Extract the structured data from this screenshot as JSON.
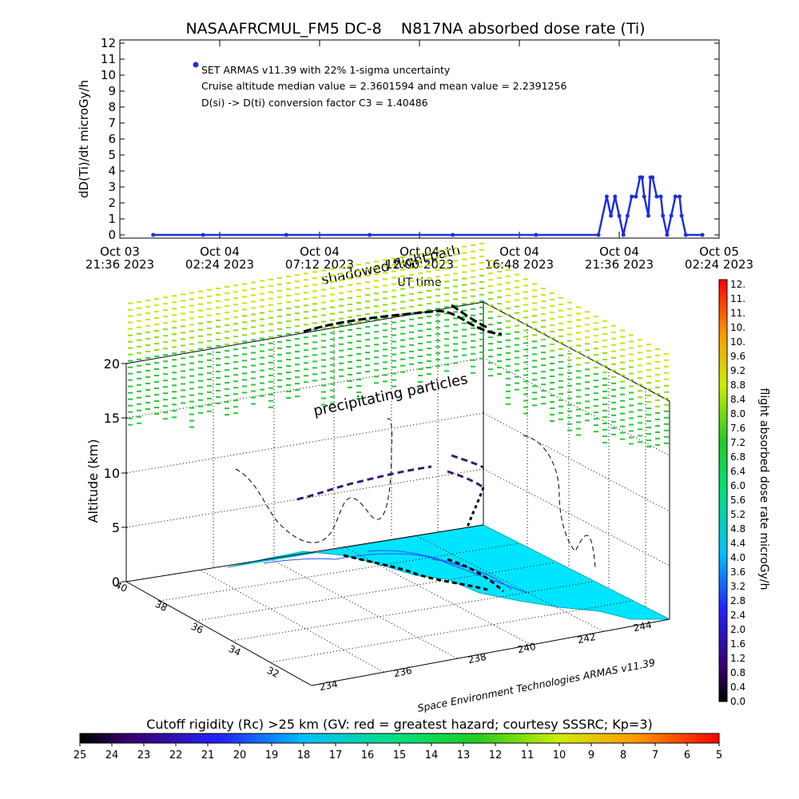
{
  "colors": {
    "series": "#1f2fe0",
    "ground": "#00e5ff",
    "lowdose": "#3a1a70",
    "highdose": "#c8e800",
    "mid": "#22cc33",
    "track": "#000000"
  },
  "top_chart": {
    "title": "NASAAFRCMUL_FM5 DC-8    N817NA absorbed dose rate (Ti)",
    "ylabel": "dD(Ti)/dt microGy/h",
    "xlabel": "UT time",
    "yticks": [
      "0",
      "1",
      "2",
      "3",
      "4",
      "5",
      "6",
      "7",
      "8",
      "9",
      "10",
      "11",
      "12"
    ],
    "xticks": [
      {
        "day": "Oct 03",
        "time": "21:36 2023"
      },
      {
        "day": "Oct 04",
        "time": "02:24 2023"
      },
      {
        "day": "Oct 04",
        "time": "07:12 2023"
      },
      {
        "day": "Oct 04",
        "time": "12:00 2023"
      },
      {
        "day": "Oct 04",
        "time": "16:48 2023"
      },
      {
        "day": "Oct 04",
        "time": "21:36 2023"
      },
      {
        "day": "Oct 05",
        "time": "02:24 2023"
      }
    ],
    "legend": [
      "SET ARMAS v11.39 with 22% 1-sigma uncertainty",
      "Cruise altitude median value = 2.3601594 and mean value = 2.2391256",
      "D(si) -> D(ti) conversion factor C3 = 1.40486"
    ],
    "overlap_label_1": "shadowed flight",
    "overlap_label_2": "path"
  },
  "chart_data": {
    "type": "line",
    "title": "NASAAFRCMUL_FM5 DC-8    N817NA absorbed dose rate (Ti)",
    "xlabel": "UT time",
    "ylabel": "dD(Ti)/dt microGy/h",
    "x_unit": "hours since Oct 03 21:36 2023",
    "ylim": [
      0,
      12
    ],
    "xlim": [
      0,
      28.8
    ],
    "series": [
      {
        "name": "SET ARMAS v11.39",
        "points": [
          [
            1.6,
            0
          ],
          [
            4,
            0
          ],
          [
            8,
            0
          ],
          [
            12,
            0
          ],
          [
            16,
            0
          ],
          [
            20,
            0
          ],
          [
            23,
            0
          ],
          [
            23.4,
            2.4
          ],
          [
            23.6,
            1.2
          ],
          [
            23.8,
            2.4
          ],
          [
            24.0,
            1.2
          ],
          [
            24.2,
            0
          ],
          [
            24.4,
            1.2
          ],
          [
            24.6,
            2.4
          ],
          [
            24.8,
            2.4
          ],
          [
            25.0,
            3.6
          ],
          [
            25.1,
            3.6
          ],
          [
            25.2,
            2.4
          ],
          [
            25.4,
            1.2
          ],
          [
            25.5,
            3.6
          ],
          [
            25.6,
            3.6
          ],
          [
            25.8,
            2.4
          ],
          [
            26.0,
            2.4
          ],
          [
            26.1,
            1.2
          ],
          [
            26.3,
            0
          ],
          [
            26.5,
            1.2
          ],
          [
            26.7,
            2.4
          ],
          [
            26.9,
            2.4
          ],
          [
            27.0,
            1.2
          ],
          [
            27.2,
            0
          ],
          [
            28.0,
            0
          ]
        ]
      }
    ]
  },
  "main_chart": {
    "zlabel": "Altitude (km)",
    "zticks": [
      "0",
      "5",
      "10",
      "15",
      "20"
    ],
    "lat_ticks": [
      "40",
      "38",
      "36",
      "34",
      "32"
    ],
    "lon_ticks": [
      "234",
      "236",
      "238",
      "240",
      "242",
      "244"
    ],
    "annotation": "precipitating particles",
    "credit": "Space Environment Technologies ARMAS v11.39"
  },
  "right_colorbar": {
    "label": "flight absorbed dose rate microGy/h",
    "ticks": [
      "12.",
      "11.",
      "11.",
      "10.",
      "10.",
      "9.6",
      "9.2",
      "8.8",
      "8.4",
      "8.0",
      "7.6",
      "7.2",
      "6.8",
      "6.4",
      "6.0",
      "5.6",
      "5.2",
      "4.8",
      "4.4",
      "4.0",
      "3.6",
      "3.2",
      "2.8",
      "2.4",
      "2.0",
      "1.6",
      "1.2",
      "0.8",
      "0.4",
      "0.0"
    ]
  },
  "bottom_colorbar": {
    "title": "Cutoff rigidity (Rc) >25 km (GV: red = greatest hazard; courtesy SSSRC; Kp=3)",
    "ticks": [
      "25",
      "24",
      "23",
      "22",
      "21",
      "20",
      "19",
      "18",
      "17",
      "16",
      "15",
      "14",
      "13",
      "12",
      "11",
      "10",
      "9",
      "8",
      "7",
      "6",
      "5"
    ]
  }
}
